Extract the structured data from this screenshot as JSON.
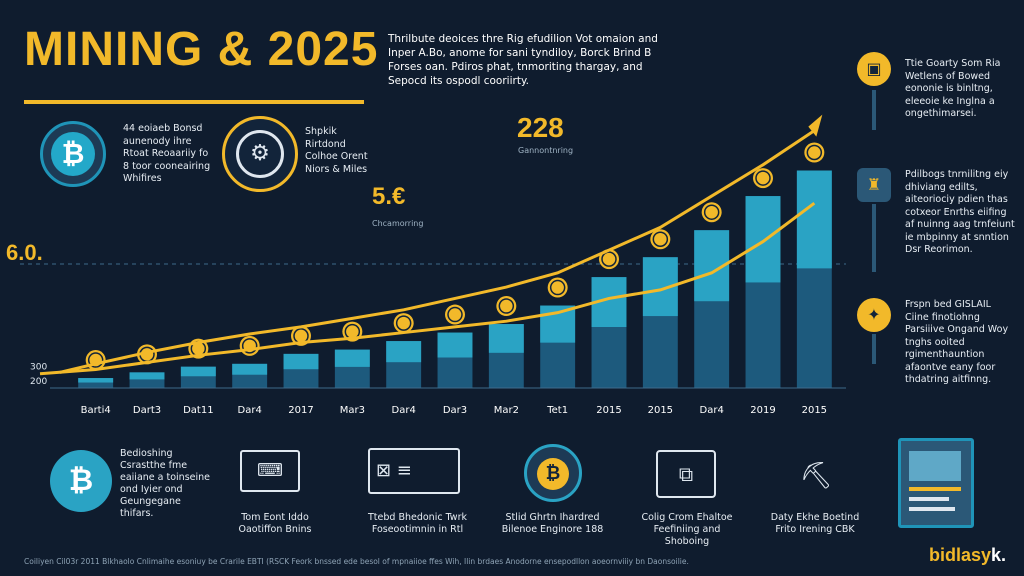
{
  "title": "MINING & 2025",
  "intro": "Thrilbute deoices thre Rig efudilion Vot omaion and Inper A.Bo, anome for sani tyndiloy, Borck Brind B Forses oan. Pdiros phat, tnmoriting thargay, and Sepocd its ospodl cooriirty.",
  "top_boxes": [
    {
      "text": "44 eoiaeb Bonsd aunenody ihre Rtoat Reoaariiy fo 8 toor cooneairing Whifires",
      "icon": "bitcoin-icon"
    },
    {
      "text": "Shpkik Rirtdond Colhoe Orent Niors & Miles",
      "icon": "mining-rig-icon"
    }
  ],
  "callouts": [
    {
      "value": "6.0.",
      "sub": ""
    },
    {
      "value": "5.€",
      "sub": "Chcamorring"
    },
    {
      "value": "228",
      "sub": "Gannontnring"
    }
  ],
  "right_notes": [
    {
      "text": "Ttie Goarty Som Ria Wetlens of Bowed eononie is binltng, eleeoie ke Inglna a ongethimarsei.",
      "icon": "rig-box-icon"
    },
    {
      "text": "Pdilbogs tnrnilitng eiy dhiviang edilts, aiteoriociy pdien thas cotxeor Enrths eiifing af nuinng aag trnfeiunt ie mbpinny at snntion Dsr Reorimon.",
      "icon": "mining-tower-icon"
    },
    {
      "text": "Frspn bed GISLAIL Ciine finotiohng Parsiiive Ongand Woy tnghs ooited rgimenthauntion afaontve eany foor thdatring aitfinng.",
      "icon": "antenna-icon"
    }
  ],
  "bottom_items": [
    {
      "label": "Bedioshing Csrastthe fme eaiiane a toinseine ond Iyier ond Geungegane thifars.",
      "icon": "bitcoin-bag-icon"
    },
    {
      "label": "Tom Eont Iddo Oaotiffon Bnins",
      "icon": "laptop-icon"
    },
    {
      "label": "Ttebd Bhedonic Twrk Foseootimnin in Rtl",
      "icon": "screen-icon"
    },
    {
      "label": "Stlid Ghrtn Ihardred Bilenoe Enginore 188",
      "icon": "bitcoin-chat-icon"
    },
    {
      "label": "Colig Crom Ehaltoe Feefiniing and Shoboing",
      "icon": "briefcase-icon"
    },
    {
      "label": "Daty Ekhe Boetind Frito Irening CBK",
      "icon": "miner-cart-icon"
    }
  ],
  "footer": "Coiliyen Cil03r 2011 Blkhaolo Cnlimaihe esoniuy be Crarile EBTI (RSCK Feork bnssed ede besol of mpnaiioe ffes Wih, Ilin brdaes Anodorne ensepodllon aoeornviiiy bn Daonsoilie.",
  "brand": "bidlasy",
  "brand_accent": "k.",
  "colors": {
    "background": "#0f1c2e",
    "accent": "#f2b92a",
    "bar_light": "#2aa3c4",
    "bar_dark": "#1d5a7d",
    "bar_top": "#36b7d6",
    "line": "#f2b92a"
  },
  "chart_data": {
    "type": "bar",
    "categories": [
      "Barti4",
      "Dart3",
      "Dat11",
      "Dar4",
      "2017",
      "Mar3",
      "Dar4",
      "Dar3",
      "Mar2",
      "Tet1",
      "2015",
      "2015",
      "Dar4",
      "2019",
      "2015"
    ],
    "series": [
      {
        "name": "",
        "values": [
          220,
          260,
          300,
          320,
          390,
          420,
          480,
          540,
          600,
          730,
          930,
          1070,
          1260,
          1500,
          1680
        ]
      }
    ],
    "trend_line_1": [
      280,
      330,
      380,
      420,
      470,
      500,
      540,
      580,
      620,
      680,
      780,
      840,
      960,
      1180,
      1450
    ],
    "trend_line_2": [
      320,
      400,
      470,
      530,
      580,
      640,
      700,
      780,
      860,
      960,
      1120,
      1280,
      1500,
      1720,
      1960
    ],
    "yticks": [
      "200",
      "300"
    ],
    "ytick_values": [
      200,
      300
    ],
    "ylim": [
      150,
      2000
    ],
    "grid": false,
    "title": "MINING & 2025"
  }
}
